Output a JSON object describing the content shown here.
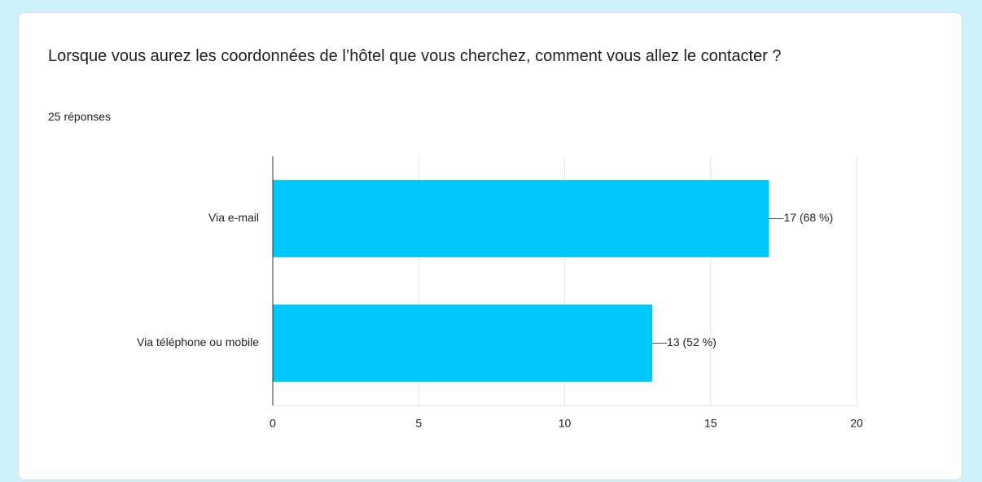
{
  "chart_data": {
    "type": "barh",
    "title": "Lorsque vous aurez les coordonnées de l’hôtel que vous cherchez, comment vous allez le contacter ?",
    "subtitle": "25 réponses",
    "categories": [
      "Via e-mail",
      "Via téléphone ou mobile"
    ],
    "values": [
      17,
      13
    ],
    "value_labels": [
      "17 (68 %)",
      "13 (52 %)"
    ],
    "color": "#00c8fa",
    "xlim": [
      0,
      20
    ],
    "xticks": [
      0,
      5,
      10,
      15,
      20
    ],
    "grid": true
  }
}
